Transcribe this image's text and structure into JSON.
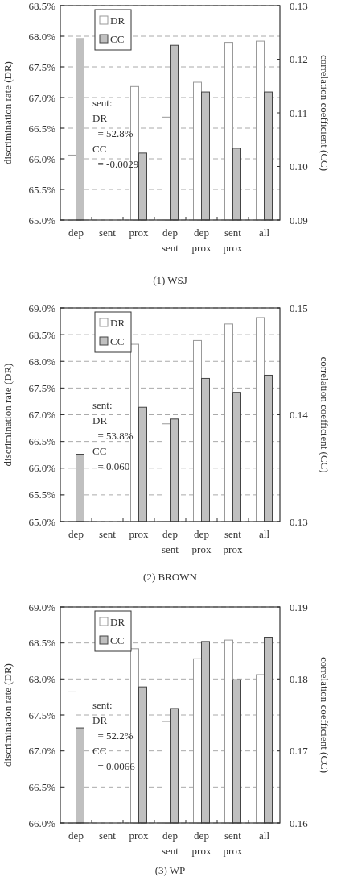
{
  "chart_data": [
    {
      "type": "bar",
      "title": "(1) WSJ",
      "ylabel": "discrimination rate (DR)",
      "y2label": "correlation coefficient (CC)",
      "categories": [
        "dep",
        "sent",
        "prox",
        "dep\nsent",
        "dep\nprox",
        "sent\nprox",
        "all"
      ],
      "series": [
        {
          "name": "DR",
          "color": "#ffffff",
          "values": [
            66.06,
            null,
            67.18,
            66.68,
            67.25,
            67.9,
            67.92
          ]
        },
        {
          "name": "CC",
          "color": "#c0c0c0",
          "axis": "y2",
          "values": [
            0.1238,
            null,
            0.1025,
            0.1226,
            0.1139,
            0.1034,
            0.1139
          ]
        }
      ],
      "ylim": [
        65,
        68.5
      ],
      "yticks": [
        {
          "value": 65,
          "label": "65.0%"
        },
        {
          "value": 65.5,
          "label": "65.5%"
        },
        {
          "value": 66,
          "label": "66.0%"
        },
        {
          "value": 66.5,
          "label": "66.5%"
        },
        {
          "value": 67,
          "label": "67.0%"
        },
        {
          "value": 67.5,
          "label": "67.5%"
        },
        {
          "value": 68,
          "label": "68.0%"
        },
        {
          "value": 68.5,
          "label": "68.5%"
        }
      ],
      "y2lim": [
        0.09,
        0.13
      ],
      "y2ticks": [
        {
          "value": 0.09,
          "label": "0.09"
        },
        {
          "value": 0.1,
          "label": "0.10"
        },
        {
          "value": 0.11,
          "label": "0.11"
        },
        {
          "value": 0.12,
          "label": "0.12"
        },
        {
          "value": 0.13,
          "label": "0.13"
        }
      ],
      "grid": "y",
      "legend": "top left",
      "annotations": [
        "sent:\nDR\n = 52.8%\nCC\n = -0.0029"
      ]
    },
    {
      "type": "bar",
      "title": "(2) BROWN",
      "ylabel": "discrimination rate (DR)",
      "y2label": "correlation coefficient (CC)",
      "categories": [
        "dep",
        "sent",
        "prox",
        "dep\nsent",
        "dep\nprox",
        "sent\nprox",
        "all"
      ],
      "series": [
        {
          "name": "DR",
          "color": "#ffffff",
          "values": [
            66.0,
            null,
            68.32,
            66.83,
            68.39,
            68.7,
            68.82
          ]
        },
        {
          "name": "CC",
          "color": "#c0c0c0",
          "axis": "y2",
          "values": [
            0.1363,
            null,
            0.1407,
            0.1396,
            0.1434,
            0.1421,
            0.1437
          ]
        }
      ],
      "ylim": [
        65,
        69
      ],
      "yticks": [
        {
          "value": 65,
          "label": "65.0%"
        },
        {
          "value": 65.5,
          "label": "65.5%"
        },
        {
          "value": 66,
          "label": "66.0%"
        },
        {
          "value": 66.5,
          "label": "66.5%"
        },
        {
          "value": 67,
          "label": "67.0%"
        },
        {
          "value": 67.5,
          "label": "67.5%"
        },
        {
          "value": 68,
          "label": "68.0%"
        },
        {
          "value": 68.5,
          "label": "68.5%"
        },
        {
          "value": 69,
          "label": "69.0%"
        }
      ],
      "y2lim": [
        0.13,
        0.15
      ],
      "y2ticks": [
        {
          "value": 0.13,
          "label": "0.13"
        },
        {
          "value": 0.14,
          "label": "0.14"
        },
        {
          "value": 0.15,
          "label": "0.15"
        }
      ],
      "grid": "y",
      "legend": "top left",
      "annotations": [
        "sent:\nDR\n = 53.8%\nCC\n = 0.060"
      ]
    },
    {
      "type": "bar",
      "title": "(3) WP",
      "ylabel": "discrimination rate (DR)",
      "y2label": "correlation coefficient (CC)",
      "categories": [
        "dep",
        "sent",
        "prox",
        "dep\nsent",
        "dep\nprox",
        "sent\nprox",
        "all"
      ],
      "series": [
        {
          "name": "DR",
          "color": "#ffffff",
          "values": [
            67.82,
            null,
            68.42,
            67.41,
            68.28,
            68.54,
            68.06
          ]
        },
        {
          "name": "CC",
          "color": "#c0c0c0",
          "axis": "y2",
          "values": [
            0.1732,
            null,
            0.1789,
            0.1759,
            0.1852,
            0.1799,
            0.1858
          ]
        }
      ],
      "ylim": [
        66,
        69
      ],
      "yticks": [
        {
          "value": 66,
          "label": "66.0%"
        },
        {
          "value": 66.5,
          "label": "66.5%"
        },
        {
          "value": 67,
          "label": "67.0%"
        },
        {
          "value": 67.5,
          "label": "67.5%"
        },
        {
          "value": 68,
          "label": "68.0%"
        },
        {
          "value": 68.5,
          "label": "68.5%"
        },
        {
          "value": 69,
          "label": "69.0%"
        }
      ],
      "y2lim": [
        0.16,
        0.19
      ],
      "y2ticks": [
        {
          "value": 0.16,
          "label": "0.16"
        },
        {
          "value": 0.17,
          "label": "0.17"
        },
        {
          "value": 0.18,
          "label": "0.18"
        },
        {
          "value": 0.19,
          "label": "0.19"
        }
      ],
      "grid": "y",
      "legend": "top left",
      "annotations": [
        "sent:\nDR\n = 52.2%\nCC\n = 0.0066"
      ]
    }
  ]
}
